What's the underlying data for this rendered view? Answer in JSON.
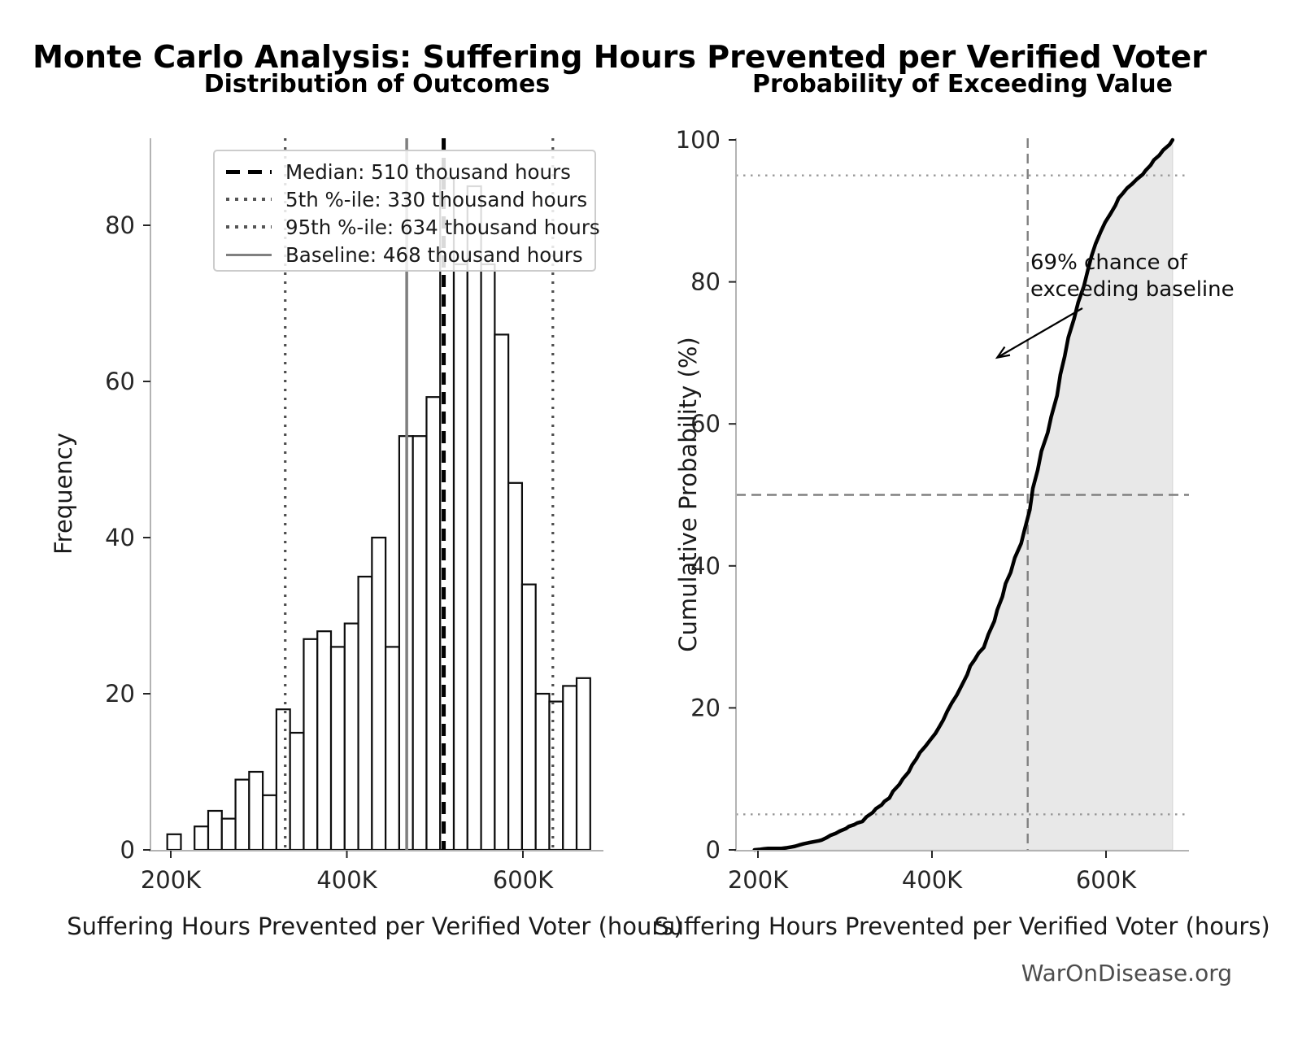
{
  "main_title": "Monte Carlo Analysis: Suffering Hours Prevented per Verified Voter",
  "watermark": "WarOnDisease.org",
  "left_chart": {
    "title": "Distribution of Outcomes",
    "xlabel": "Suffering Hours Prevented per Verified Voter (hours)",
    "ylabel": "Frequency",
    "legend": [
      {
        "label": "Median: 510 thousand hours",
        "style": "dashed-black"
      },
      {
        "label": "5th %-ile: 330 thousand hours",
        "style": "dotted-gray"
      },
      {
        "label": "95th %-ile: 634 thousand hours",
        "style": "dotted-gray"
      },
      {
        "label": "Baseline: 468 thousand hours",
        "style": "solid-gray"
      }
    ]
  },
  "right_chart": {
    "title": "Probability of Exceeding Value",
    "xlabel": "Suffering Hours Prevented per Verified Voter (hours)",
    "ylabel": "Cumulative Probability (%)",
    "annotation": {
      "line1": "69% chance of",
      "line2": "exceeding baseline"
    }
  },
  "chart_data": [
    {
      "type": "bar",
      "subtype": "histogram",
      "title": "Distribution of Outcomes",
      "xlabel": "Suffering Hours Prevented per Verified Voter (hours)",
      "ylabel": "Frequency",
      "bin_start": 196000,
      "bin_width": 15500,
      "frequencies": [
        2,
        0,
        3,
        5,
        4,
        9,
        10,
        7,
        18,
        15,
        27,
        28,
        26,
        29,
        35,
        40,
        26,
        53,
        53,
        58,
        86,
        75,
        85,
        75,
        66,
        47,
        34,
        20,
        19,
        21,
        22
      ],
      "x_tick_values": [
        200000,
        400000,
        600000
      ],
      "x_tick_labels": [
        "200K",
        "400K",
        "600K"
      ],
      "y_ticks": [
        0,
        20,
        40,
        60,
        80
      ],
      "ylim": [
        0,
        91
      ],
      "grid": false,
      "legend_position": "upper-left",
      "markers": {
        "median": 510000,
        "p5": 330000,
        "p95": 634000,
        "baseline": 468000
      },
      "bar_fill": "#ffffff",
      "bar_edge": "#0d0d0d"
    },
    {
      "type": "line",
      "subtype": "empirical-cdf",
      "title": "Probability of Exceeding Value",
      "xlabel": "Suffering Hours Prevented per Verified Voter (hours)",
      "ylabel": "Cumulative Probability (%)",
      "x": [
        196000,
        211500,
        227000,
        242500,
        258000,
        273500,
        289000,
        304500,
        320000,
        335500,
        351000,
        366500,
        382000,
        397500,
        413000,
        428500,
        444000,
        459500,
        475000,
        490500,
        506000,
        521500,
        537000,
        552500,
        568000,
        583500,
        599000,
        614500,
        630000,
        645500,
        661000,
        676500
      ],
      "y": [
        0,
        0.2,
        0.2,
        0.5,
        1.0,
        1.4,
        2.3,
        3.3,
        4.0,
        5.8,
        7.3,
        10.0,
        12.8,
        15.4,
        18.3,
        21.8,
        25.9,
        28.5,
        33.8,
        39.1,
        44.9,
        53.5,
        61.0,
        69.5,
        77.1,
        83.7,
        88.4,
        91.8,
        93.8,
        95.7,
        97.8,
        100
      ],
      "x_tick_values": [
        200000,
        400000,
        600000
      ],
      "x_tick_labels": [
        "200K",
        "400K",
        "600K"
      ],
      "y_ticks": [
        0,
        20,
        40,
        60,
        80,
        100
      ],
      "ylim": [
        0,
        100
      ],
      "grid": false,
      "fill_under": true,
      "fill_color": "#e8e8e8",
      "line_color": "#000000",
      "hlines": [
        {
          "y": 5,
          "style": "dotted"
        },
        {
          "y": 50,
          "style": "dashed"
        },
        {
          "y": 95,
          "style": "dotted"
        }
      ],
      "vlines": [
        {
          "x": 510000,
          "style": "dashed"
        }
      ],
      "annotation": {
        "text": "69% chance of exceeding baseline",
        "arrow_tip_x": 475000,
        "arrow_tip_y_percent": 69
      }
    }
  ]
}
